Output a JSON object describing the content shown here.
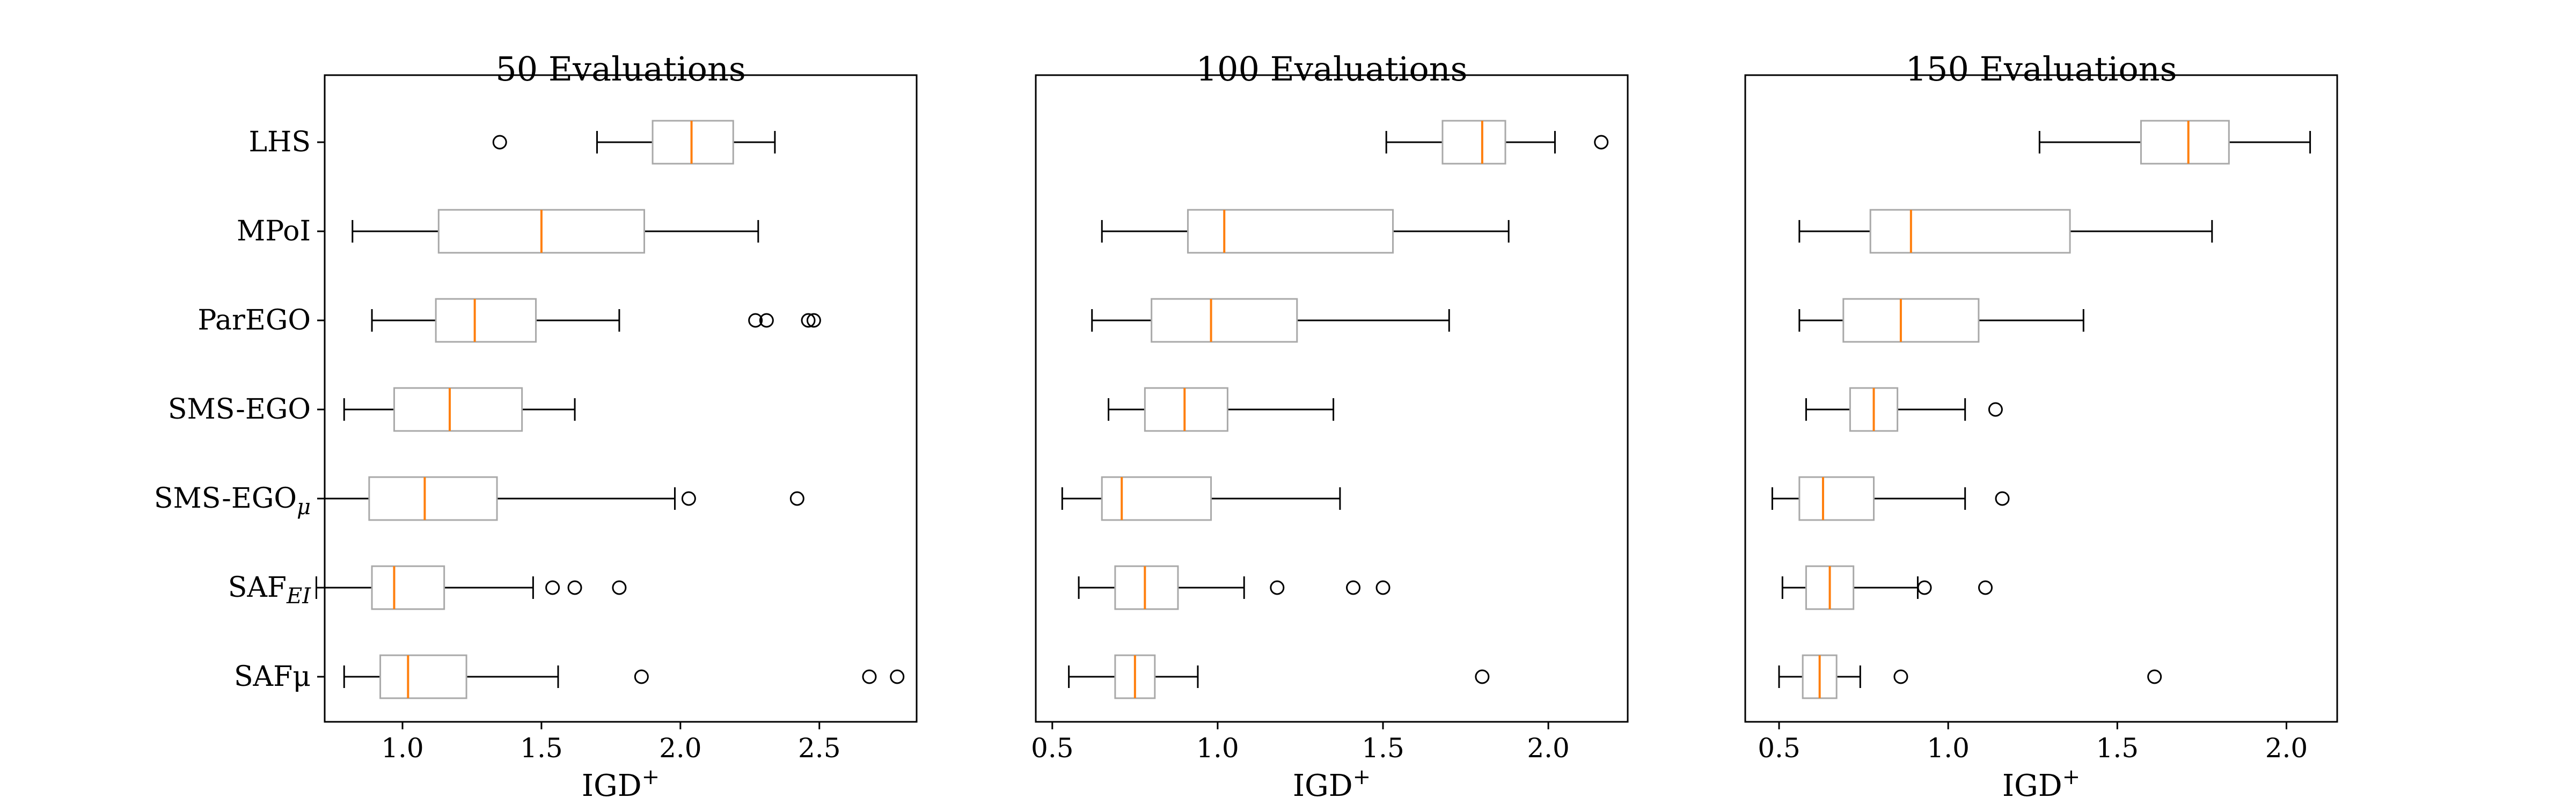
{
  "chart_data": [
    {
      "type": "box",
      "title": "50 Evaluations",
      "xlabel": "IGD",
      "xlabel_sup": "+",
      "xlim": [
        0.72,
        2.85
      ],
      "xticks": [
        1.0,
        1.5,
        2.0,
        2.5
      ],
      "xtick_labels": [
        "1.0",
        "1.5",
        "2.0",
        "2.5"
      ],
      "categories": [
        {
          "name": "LHS",
          "sub": ""
        },
        {
          "name": "MPoI",
          "sub": ""
        },
        {
          "name": "ParEGO",
          "sub": ""
        },
        {
          "name": "SMS-EGO",
          "sub": ""
        },
        {
          "name": "SMS-EGO",
          "sub": "μ"
        },
        {
          "name": "SAF",
          "sub": "EI"
        },
        {
          "name": "SAFμ",
          "sub": ""
        }
      ],
      "boxes": [
        {
          "whislo": 1.7,
          "q1": 1.9,
          "med": 2.04,
          "q3": 2.19,
          "whishi": 2.34,
          "fliers": [
            1.35
          ]
        },
        {
          "whislo": 0.82,
          "q1": 1.13,
          "med": 1.5,
          "q3": 1.87,
          "whishi": 2.28,
          "fliers": []
        },
        {
          "whislo": 0.89,
          "q1": 1.12,
          "med": 1.26,
          "q3": 1.48,
          "whishi": 1.78,
          "fliers": [
            2.27,
            2.31,
            2.46,
            2.48
          ]
        },
        {
          "whislo": 0.79,
          "q1": 0.97,
          "med": 1.17,
          "q3": 1.43,
          "whishi": 1.62,
          "fliers": []
        },
        {
          "whislo": 0.72,
          "q1": 0.88,
          "med": 1.08,
          "q3": 1.34,
          "whishi": 1.98,
          "fliers": [
            2.03,
            2.42
          ]
        },
        {
          "whislo": 0.69,
          "q1": 0.89,
          "med": 0.97,
          "q3": 1.15,
          "whishi": 1.47,
          "fliers": [
            1.54,
            1.62,
            1.78
          ]
        },
        {
          "whislo": 0.79,
          "q1": 0.92,
          "med": 1.02,
          "q3": 1.23,
          "whishi": 1.56,
          "fliers": [
            1.86,
            2.68,
            2.78
          ]
        }
      ]
    },
    {
      "type": "box",
      "title": "100 Evaluations",
      "xlabel": "IGD",
      "xlabel_sup": "+",
      "xlim": [
        0.45,
        2.24
      ],
      "xticks": [
        0.5,
        1.0,
        1.5,
        2.0
      ],
      "xtick_labels": [
        "0.5",
        "1.0",
        "1.5",
        "2.0"
      ],
      "categories": [
        {
          "name": "LHS",
          "sub": ""
        },
        {
          "name": "MPoI",
          "sub": ""
        },
        {
          "name": "ParEGO",
          "sub": ""
        },
        {
          "name": "SMS-EGO",
          "sub": ""
        },
        {
          "name": "SMS-EGO",
          "sub": "μ"
        },
        {
          "name": "SAF",
          "sub": "EI"
        },
        {
          "name": "SAFμ",
          "sub": ""
        }
      ],
      "boxes": [
        {
          "whislo": 1.51,
          "q1": 1.68,
          "med": 1.8,
          "q3": 1.87,
          "whishi": 2.02,
          "fliers": [
            2.16
          ]
        },
        {
          "whislo": 0.65,
          "q1": 0.91,
          "med": 1.02,
          "q3": 1.53,
          "whishi": 1.88,
          "fliers": []
        },
        {
          "whislo": 0.62,
          "q1": 0.8,
          "med": 0.98,
          "q3": 1.24,
          "whishi": 1.7,
          "fliers": []
        },
        {
          "whislo": 0.67,
          "q1": 0.78,
          "med": 0.9,
          "q3": 1.03,
          "whishi": 1.35,
          "fliers": []
        },
        {
          "whislo": 0.53,
          "q1": 0.65,
          "med": 0.71,
          "q3": 0.98,
          "whishi": 1.37,
          "fliers": []
        },
        {
          "whislo": 0.58,
          "q1": 0.69,
          "med": 0.78,
          "q3": 0.88,
          "whishi": 1.08,
          "fliers": [
            1.18,
            1.41,
            1.5
          ]
        },
        {
          "whislo": 0.55,
          "q1": 0.69,
          "med": 0.75,
          "q3": 0.81,
          "whishi": 0.94,
          "fliers": [
            1.8
          ]
        }
      ]
    },
    {
      "type": "box",
      "title": "150 Evaluations",
      "xlabel": "IGD",
      "xlabel_sup": "+",
      "xlim": [
        0.4,
        2.15
      ],
      "xticks": [
        0.5,
        1.0,
        1.5,
        2.0
      ],
      "xtick_labels": [
        "0.5",
        "1.0",
        "1.5",
        "2.0"
      ],
      "categories": [
        {
          "name": "LHS",
          "sub": ""
        },
        {
          "name": "MPoI",
          "sub": ""
        },
        {
          "name": "ParEGO",
          "sub": ""
        },
        {
          "name": "SMS-EGO",
          "sub": ""
        },
        {
          "name": "SMS-EGO",
          "sub": "μ"
        },
        {
          "name": "SAF",
          "sub": "EI"
        },
        {
          "name": "SAFμ",
          "sub": ""
        }
      ],
      "boxes": [
        {
          "whislo": 1.27,
          "q1": 1.57,
          "med": 1.71,
          "q3": 1.83,
          "whishi": 2.07,
          "fliers": []
        },
        {
          "whislo": 0.56,
          "q1": 0.77,
          "med": 0.89,
          "q3": 1.36,
          "whishi": 1.78,
          "fliers": []
        },
        {
          "whislo": 0.56,
          "q1": 0.69,
          "med": 0.86,
          "q3": 1.09,
          "whishi": 1.4,
          "fliers": []
        },
        {
          "whislo": 0.58,
          "q1": 0.71,
          "med": 0.78,
          "q3": 0.85,
          "whishi": 1.05,
          "fliers": [
            1.14
          ]
        },
        {
          "whislo": 0.48,
          "q1": 0.56,
          "med": 0.63,
          "q3": 0.78,
          "whishi": 1.05,
          "fliers": [
            1.16
          ]
        },
        {
          "whislo": 0.51,
          "q1": 0.58,
          "med": 0.65,
          "q3": 0.72,
          "whishi": 0.91,
          "fliers": [
            0.93,
            1.11
          ]
        },
        {
          "whislo": 0.5,
          "q1": 0.57,
          "med": 0.62,
          "q3": 0.67,
          "whishi": 0.74,
          "fliers": [
            0.86,
            1.61
          ]
        }
      ]
    }
  ],
  "colors": {
    "box": "#a9a9a9",
    "median": "#ff7f0e",
    "whisker": "#000000",
    "flier": "#000000",
    "axes": "#000000"
  }
}
